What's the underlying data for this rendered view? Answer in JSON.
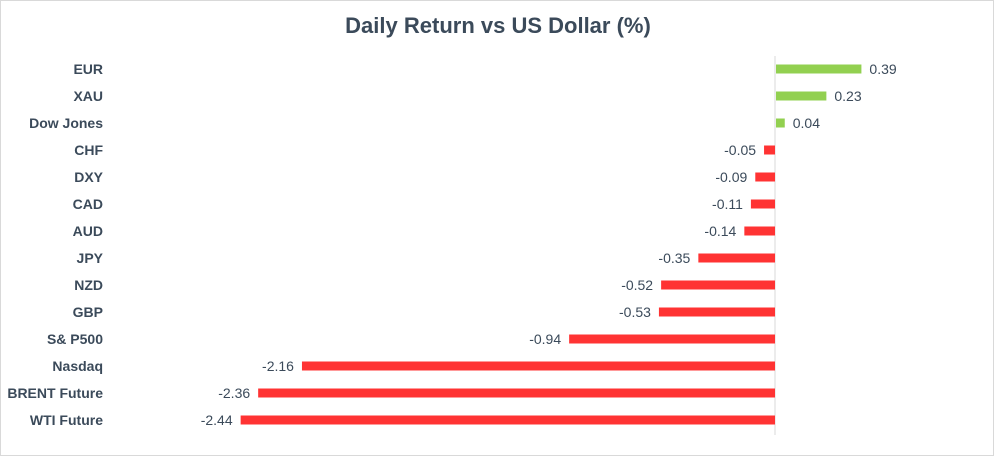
{
  "chart_data": {
    "type": "bar",
    "orientation": "horizontal",
    "title": "Daily Return vs US Dollar (%)",
    "xlabel": "",
    "ylabel": "",
    "categories": [
      "EUR",
      "XAU",
      "Dow Jones",
      "CHF",
      "DXY",
      "CAD",
      "AUD",
      "JPY",
      "NZD",
      "GBP",
      "S& P500",
      "Nasdaq",
      "BRENT Future",
      "WTI Future"
    ],
    "values": [
      0.39,
      0.23,
      0.04,
      -0.05,
      -0.09,
      -0.11,
      -0.14,
      -0.35,
      -0.52,
      -0.53,
      -0.94,
      -2.16,
      -2.36,
      -2.44
    ],
    "value_labels": [
      "0.39",
      "0.23",
      "0.04",
      "-0.05",
      "-0.09",
      "-0.11",
      "-0.14",
      "-0.35",
      "-0.52",
      "-0.53",
      "-0.94",
      "-2.16",
      "-2.36",
      "-2.44"
    ],
    "xlim": [
      -2.44,
      0.39
    ],
    "grid": false,
    "legend": "none",
    "colors": {
      "positive": "#92d050",
      "negative": "#ff3333",
      "axis": "#d9d9d9",
      "text": "#3b4a5a"
    }
  }
}
